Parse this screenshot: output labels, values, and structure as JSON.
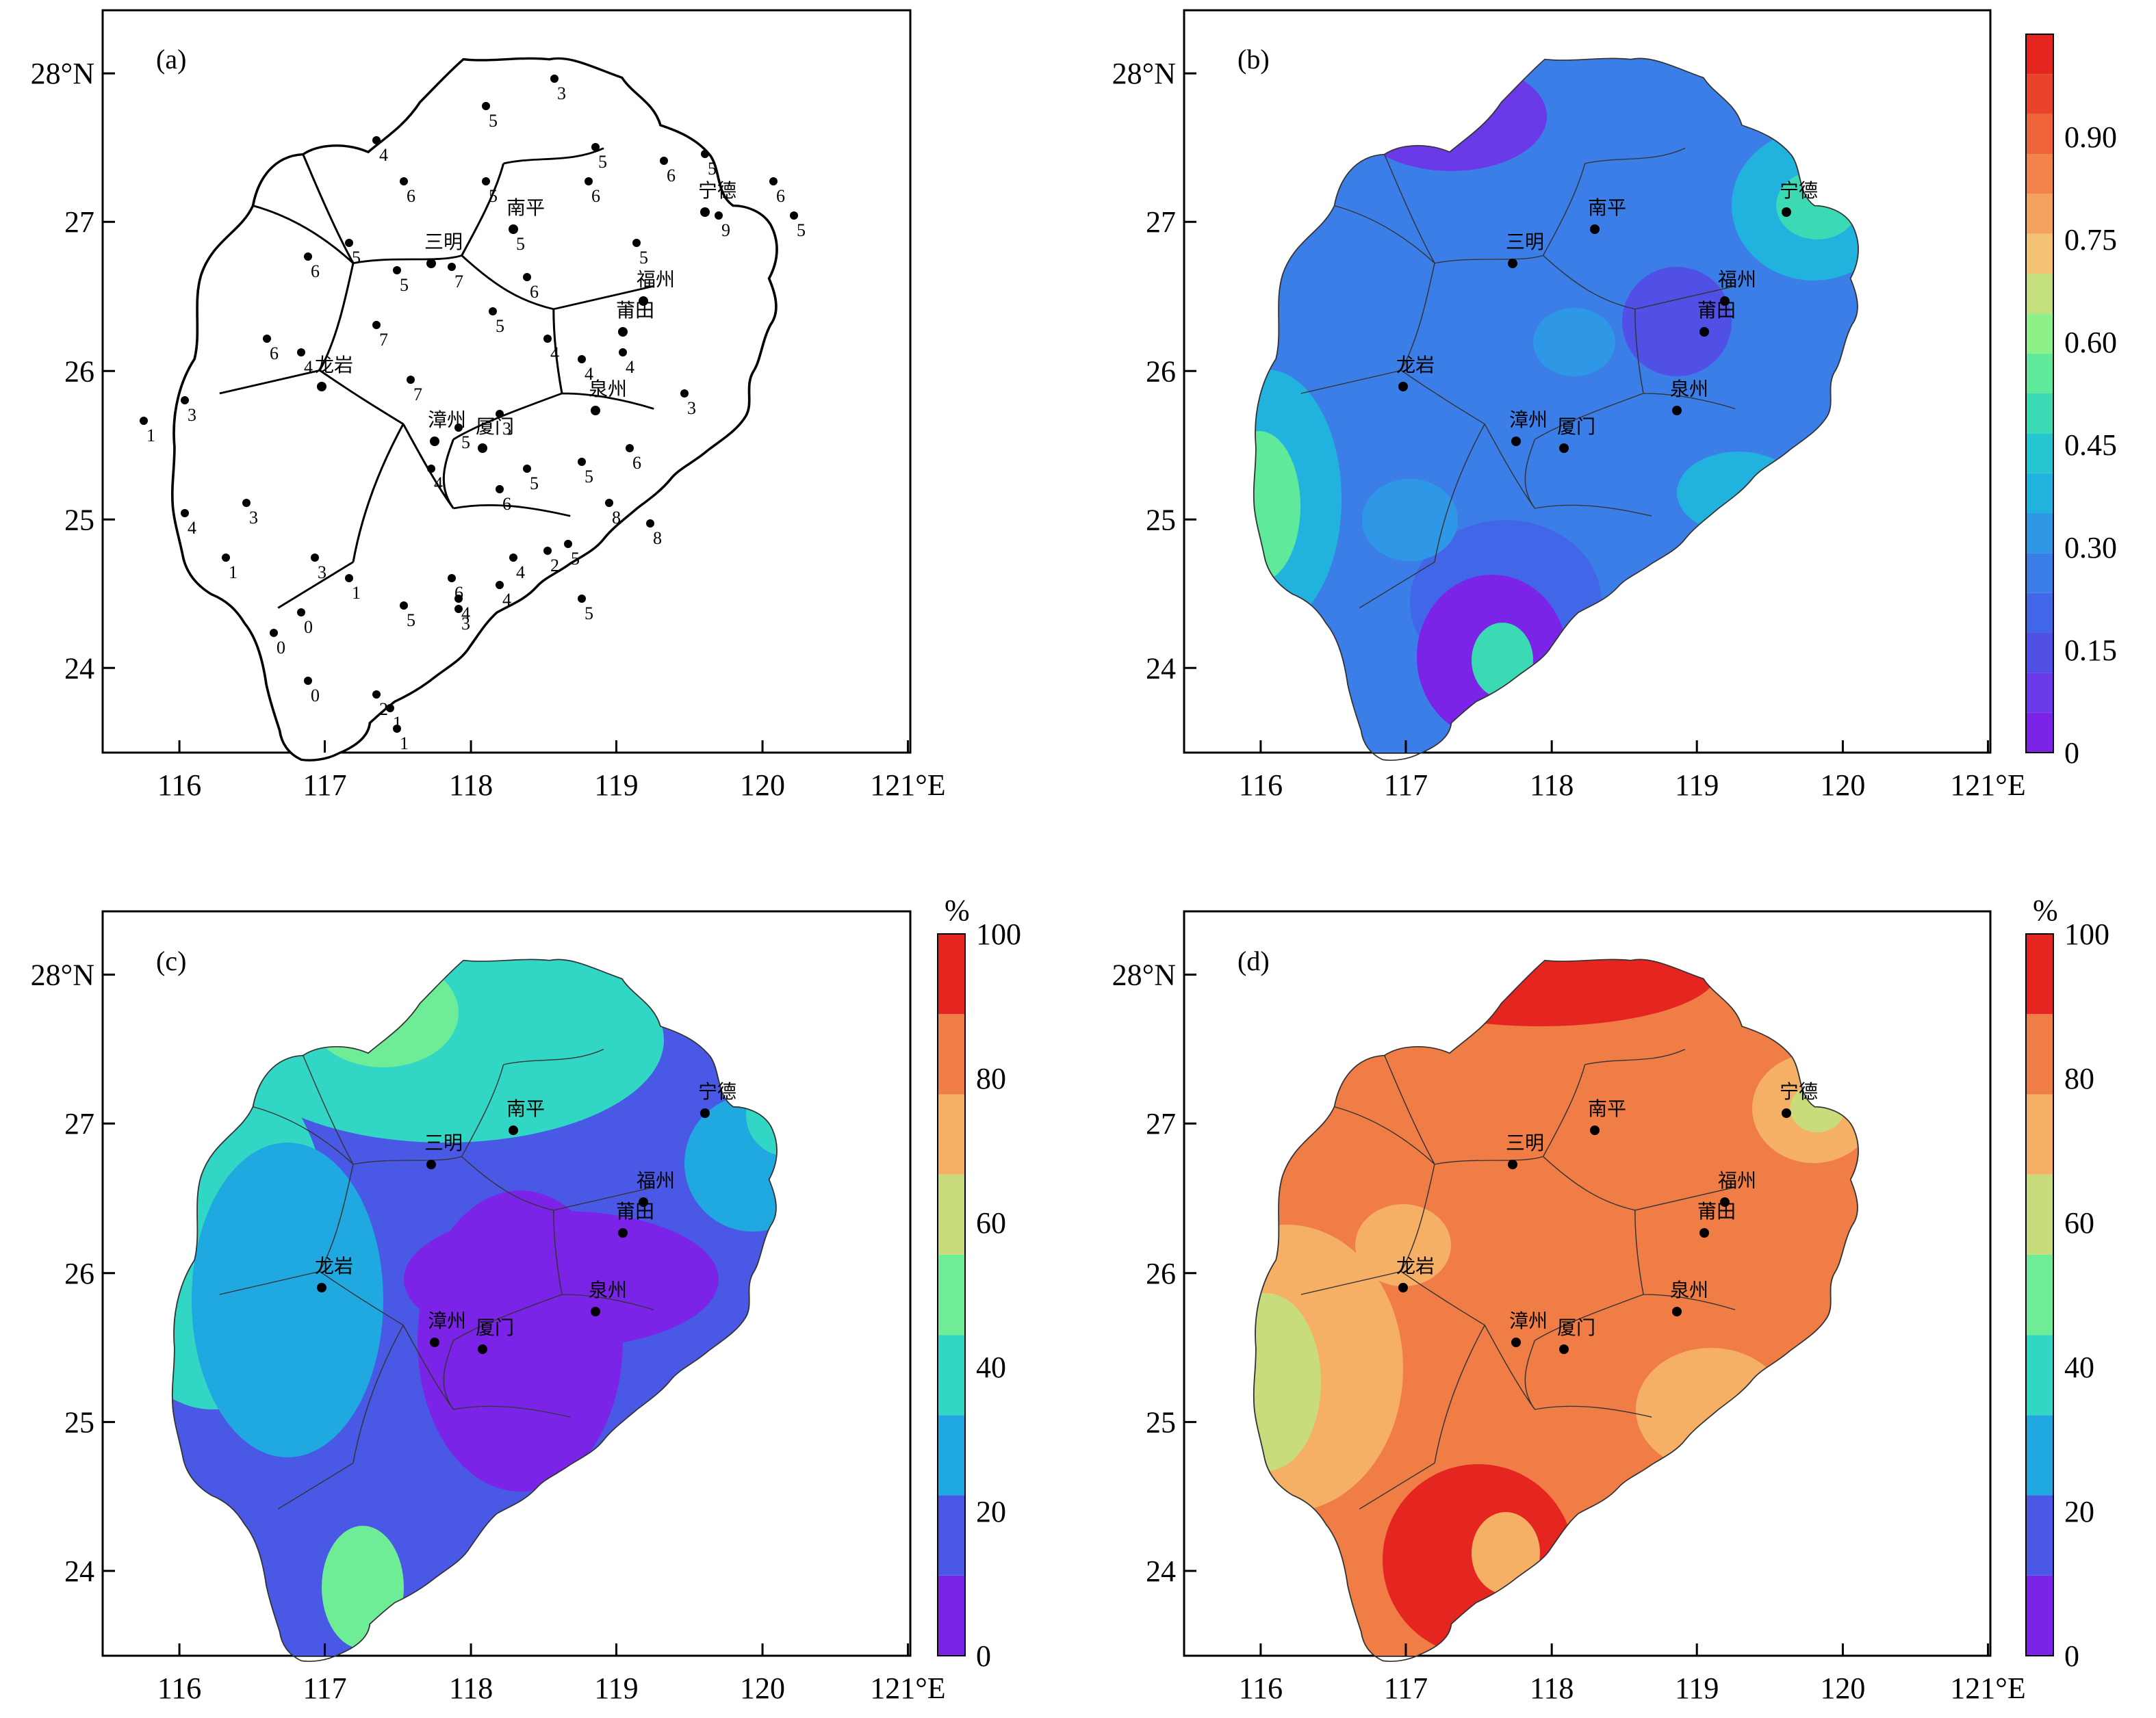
{
  "longitude_ticks": [
    "116",
    "117",
    "118",
    "119",
    "120",
    "121°E"
  ],
  "latitude_ticks": [
    "28°N",
    "27",
    "26",
    "25",
    "24"
  ],
  "cities": [
    "南平",
    "宁德",
    "三明",
    "福州",
    "莆田",
    "龙岩",
    "泉州",
    "漳州",
    "厦门"
  ],
  "panels": {
    "a": {
      "letter": "(a)"
    },
    "b": {
      "letter": "(b)"
    },
    "c": {
      "letter": "(c)"
    },
    "d": {
      "letter": "(d)"
    }
  },
  "station_counts": [
    "3",
    "5",
    "4",
    "6",
    "5",
    "5",
    "6",
    "6",
    "5",
    "6",
    "5",
    "9",
    "5",
    "5",
    "6",
    "6",
    "5",
    "5",
    "7",
    "5",
    "7",
    "4",
    "6",
    "4",
    "4",
    "4",
    "3",
    "1",
    "3",
    "7",
    "3",
    "5",
    "6",
    "5",
    "5",
    "6",
    "4",
    "8",
    "5",
    "8",
    "4",
    "3",
    "1",
    "3",
    "4",
    "2",
    "6",
    "3",
    "4",
    "5",
    "4",
    "5",
    "1",
    "0",
    "0",
    "0",
    "2",
    "1",
    "1"
  ],
  "colorbar_b": {
    "labels": [
      "0",
      "0.15",
      "0.30",
      "0.45",
      "0.60",
      "0.75",
      "0.90"
    ],
    "colors": [
      "#7b24e8",
      "#6a3ae8",
      "#5050e6",
      "#4266e8",
      "#3b7ee8",
      "#2f98e6",
      "#22b2de",
      "#25c6cf",
      "#3bd9b4",
      "#5fe99a",
      "#8ef088",
      "#c4e07c",
      "#f3c272",
      "#f5a25e",
      "#f3834a",
      "#ef6438",
      "#ea432b",
      "#e52620"
    ]
  },
  "colorbar_c": {
    "unit": "%",
    "labels": [
      "0",
      "20",
      "40",
      "60",
      "80",
      "100"
    ],
    "colors": [
      "#7b24e8",
      "#4a58e6",
      "#20a8e0",
      "#32d6c4",
      "#6eec96",
      "#c8dc7c",
      "#f5b066",
      "#f07c46",
      "#e52620"
    ]
  },
  "colorbar_d": {
    "unit": "%",
    "labels": [
      "0",
      "20",
      "40",
      "60",
      "80",
      "100"
    ],
    "colors": [
      "#7b24e8",
      "#4a58e6",
      "#20a8e0",
      "#32d6c4",
      "#6eec96",
      "#c8dc7c",
      "#f5b066",
      "#f07c46",
      "#e52620"
    ]
  }
}
